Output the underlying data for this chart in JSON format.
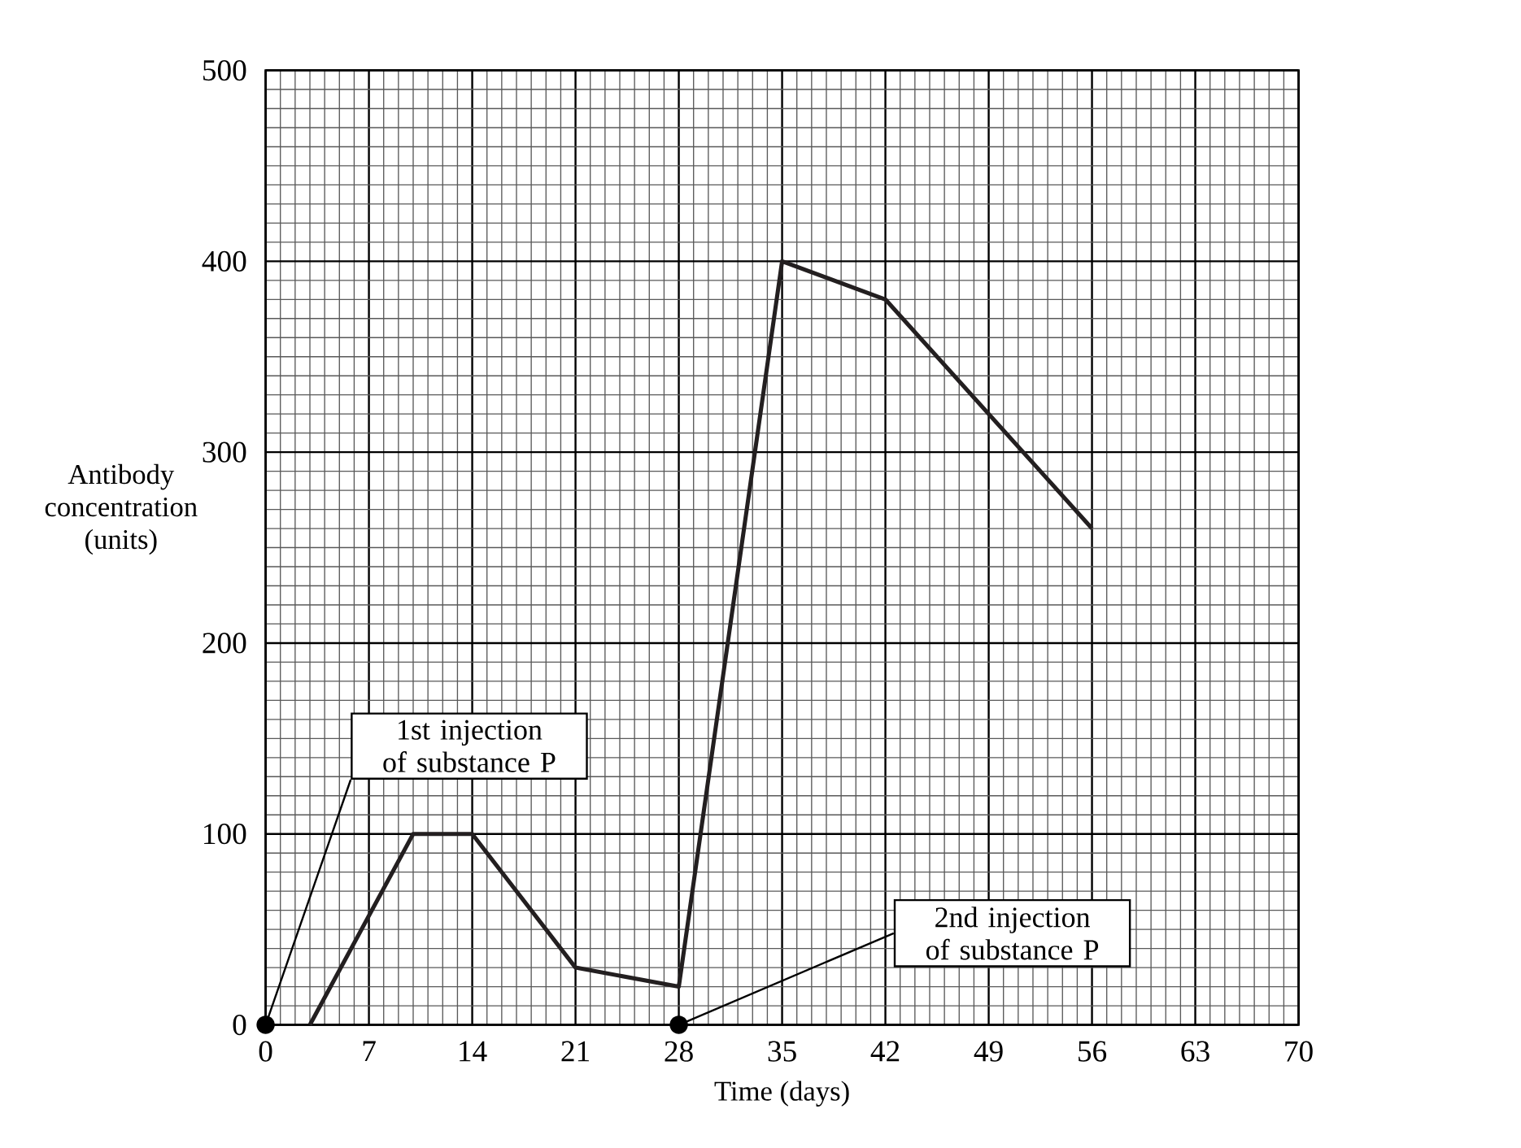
{
  "chart_data": {
    "type": "line",
    "xlabel": "Time (days)",
    "ylabel": "Antibody concentration (units)",
    "x": [
      3,
      10,
      14,
      21,
      28,
      35,
      42,
      56
    ],
    "series": [
      {
        "color": "#231f20",
        "values": [
          0,
          100,
          100,
          30,
          20,
          400,
          380,
          260
        ]
      }
    ],
    "xlim": [
      0,
      70
    ],
    "ylim": [
      0,
      500
    ],
    "xticks": [
      0,
      7,
      14,
      21,
      28,
      35,
      42,
      49,
      56,
      63,
      70
    ],
    "yticks": [
      0,
      100,
      200,
      300,
      400,
      500
    ],
    "grid": true,
    "marker": "none",
    "line_style": "solid",
    "annotations": [
      {
        "text": "1st injection of substance P",
        "x": 0,
        "y": 0
      },
      {
        "text": "2nd injection of substance P",
        "x": 28,
        "y": 0
      }
    ]
  }
}
